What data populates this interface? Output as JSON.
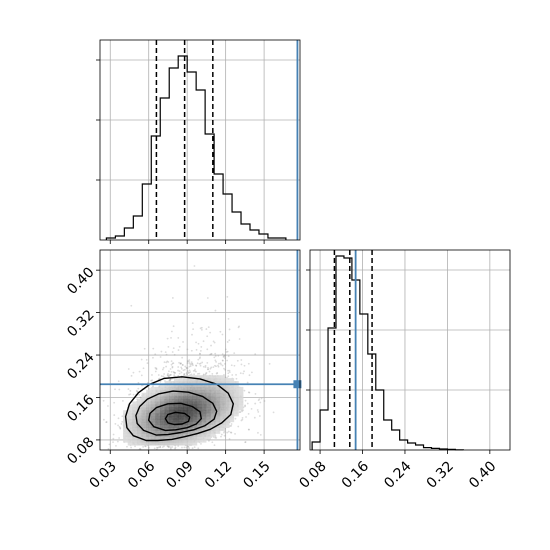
{
  "chart_data": {
    "type": "corner",
    "colors": {
      "truth": "#4682b4",
      "hist": "#000000",
      "grid": "#b0b0b0",
      "points": "#9a9a9a"
    },
    "panels": [
      {
        "name": "hist-param-1",
        "type": "histogram",
        "xlim": [
          0.022,
          0.178
        ],
        "ylim": [
          0,
          1.0
        ],
        "bin_edges": [
          0.027,
          0.034,
          0.041,
          0.048,
          0.055,
          0.062,
          0.069,
          0.076,
          0.083,
          0.09,
          0.097,
          0.104,
          0.111,
          0.118,
          0.125,
          0.132,
          0.139,
          0.146,
          0.153,
          0.16,
          0.167
        ],
        "counts": [
          0.01,
          0.02,
          0.06,
          0.12,
          0.28,
          0.52,
          0.71,
          0.86,
          0.92,
          0.84,
          0.75,
          0.53,
          0.33,
          0.23,
          0.14,
          0.08,
          0.05,
          0.03,
          0.01,
          0.01
        ],
        "quantiles": [
          0.066,
          0.088,
          0.11
        ],
        "truth": 0.176
      },
      {
        "name": "scatter-param-1-vs-2",
        "type": "scatter-contour",
        "xlim": [
          0.022,
          0.178
        ],
        "ylim": [
          0.061,
          0.438
        ],
        "x_ticks": [
          0.03,
          0.06,
          0.09,
          0.12,
          0.15
        ],
        "x_tick_labels": [
          "0.03",
          "0.06",
          "0.09",
          "0.12",
          "0.15"
        ],
        "y_ticks": [
          0.08,
          0.16,
          0.24,
          0.32,
          0.4
        ],
        "y_tick_labels": [
          "0.08",
          "0.16",
          "0.24",
          "0.32",
          "0.40"
        ],
        "contours": [
          [
            [
              0.058,
              0.079
            ],
            [
              0.067,
              0.079
            ],
            [
              0.078,
              0.081
            ],
            [
              0.088,
              0.086
            ],
            [
              0.098,
              0.092
            ],
            [
              0.108,
              0.1
            ],
            [
              0.117,
              0.112
            ],
            [
              0.124,
              0.128
            ],
            [
              0.126,
              0.148
            ],
            [
              0.122,
              0.168
            ],
            [
              0.113,
              0.185
            ],
            [
              0.1,
              0.195
            ],
            [
              0.086,
              0.199
            ],
            [
              0.072,
              0.196
            ],
            [
              0.061,
              0.185
            ],
            [
              0.052,
              0.169
            ],
            [
              0.045,
              0.148
            ],
            [
              0.042,
              0.124
            ],
            [
              0.043,
              0.103
            ],
            [
              0.048,
              0.088
            ]
          ],
          [
            [
              0.066,
              0.089
            ],
            [
              0.075,
              0.09
            ],
            [
              0.085,
              0.094
            ],
            [
              0.095,
              0.099
            ],
            [
              0.104,
              0.107
            ],
            [
              0.111,
              0.119
            ],
            [
              0.113,
              0.134
            ],
            [
              0.11,
              0.149
            ],
            [
              0.102,
              0.162
            ],
            [
              0.091,
              0.17
            ],
            [
              0.079,
              0.172
            ],
            [
              0.068,
              0.167
            ],
            [
              0.059,
              0.157
            ],
            [
              0.053,
              0.143
            ],
            [
              0.05,
              0.126
            ],
            [
              0.051,
              0.111
            ],
            [
              0.056,
              0.098
            ]
          ],
          [
            [
              0.073,
              0.098
            ],
            [
              0.081,
              0.099
            ],
            [
              0.09,
              0.103
            ],
            [
              0.097,
              0.11
            ],
            [
              0.101,
              0.12
            ],
            [
              0.1,
              0.133
            ],
            [
              0.094,
              0.143
            ],
            [
              0.085,
              0.149
            ],
            [
              0.075,
              0.148
            ],
            [
              0.066,
              0.141
            ],
            [
              0.061,
              0.13
            ],
            [
              0.06,
              0.117
            ],
            [
              0.064,
              0.105
            ]
          ],
          [
            [
              0.08,
              0.109
            ],
            [
              0.086,
              0.11
            ],
            [
              0.091,
              0.115
            ],
            [
              0.092,
              0.123
            ],
            [
              0.088,
              0.13
            ],
            [
              0.081,
              0.132
            ],
            [
              0.075,
              0.128
            ],
            [
              0.073,
              0.12
            ],
            [
              0.075,
              0.112
            ]
          ]
        ],
        "truth_x": 0.176,
        "truth_y": 0.185
      },
      {
        "name": "hist-param-2",
        "type": "histogram",
        "xlim": [
          0.061,
          0.438
        ],
        "ylim": [
          0,
          1.0
        ],
        "bin_edges": [
          0.065,
          0.08,
          0.095,
          0.11,
          0.125,
          0.14,
          0.155,
          0.17,
          0.185,
          0.2,
          0.215,
          0.23,
          0.245,
          0.26,
          0.275,
          0.29,
          0.305,
          0.32,
          0.335,
          0.35
        ],
        "counts": [
          0.04,
          0.2,
          0.61,
          0.97,
          0.96,
          0.85,
          0.68,
          0.48,
          0.3,
          0.15,
          0.1,
          0.05,
          0.035,
          0.025,
          0.012,
          0.008,
          0.005,
          0.003,
          0.001
        ],
        "quantiles": [
          0.107,
          0.136,
          0.178
        ],
        "truth": 0.147
      }
    ]
  }
}
